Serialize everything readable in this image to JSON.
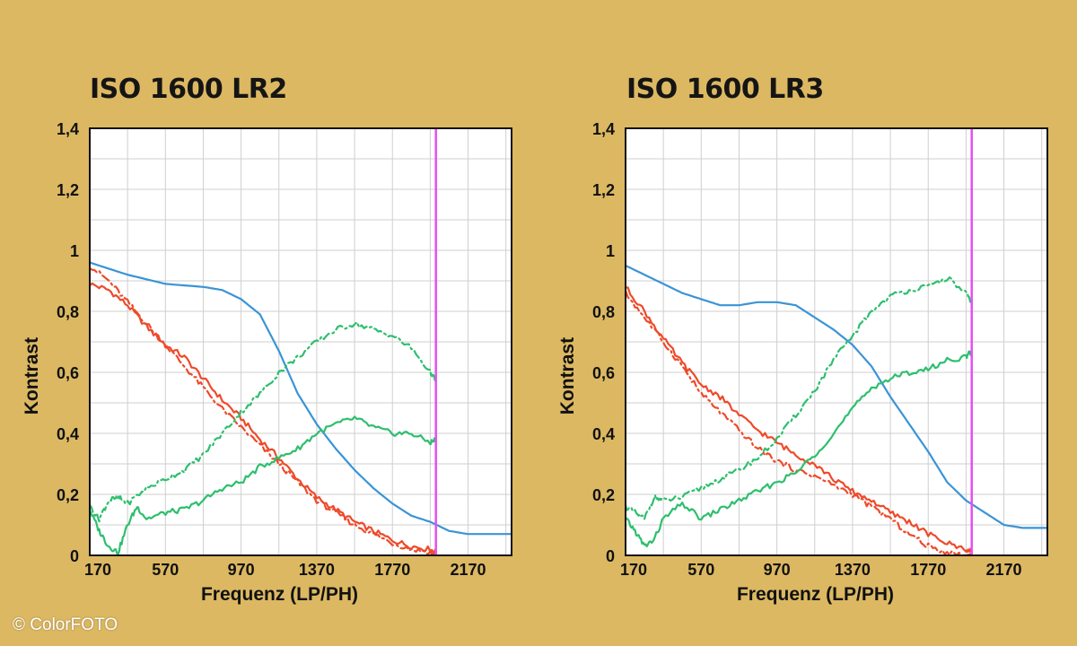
{
  "copyright": "© ColorFOTO",
  "colors": {
    "background": "#dcb862",
    "plot_bg": "#ffffff",
    "grid": "#cfcfcf",
    "frame": "#111111",
    "blue": "#3a94d6",
    "red": "#ee4a2a",
    "green": "#2dbf6e",
    "limit": "#e64ef2"
  },
  "chart_data": [
    {
      "type": "line",
      "title": "ISO 1600 LR2",
      "xlabel": "Frequenz (LP/PH)",
      "ylabel": "Kontrast",
      "xlim": [
        170,
        2400
      ],
      "ylim": [
        0,
        1.4
      ],
      "xticks": [
        170,
        570,
        970,
        1370,
        1770,
        2170
      ],
      "yticks": [
        0,
        0.2,
        0.4,
        0.6,
        0.8,
        1,
        1.2,
        1.4
      ],
      "ytick_labels": [
        "0",
        "0,2",
        "0,4",
        "0,6",
        "0,8",
        "1",
        "1,2",
        "1,4"
      ],
      "grid": true,
      "vline": {
        "x": 2000,
        "color": "#e64ef2"
      },
      "series": [
        {
          "color": "#3a94d6",
          "style": "solid",
          "x": [
            170,
            370,
            570,
            770,
            870,
            970,
            1070,
            1170,
            1270,
            1370,
            1470,
            1570,
            1670,
            1770,
            1870,
            1970,
            2070,
            2170,
            2270,
            2400
          ],
          "y": [
            0.96,
            0.92,
            0.89,
            0.88,
            0.87,
            0.84,
            0.79,
            0.67,
            0.53,
            0.43,
            0.35,
            0.28,
            0.22,
            0.17,
            0.13,
            0.11,
            0.08,
            0.07,
            0.07,
            0.07
          ]
        },
        {
          "color": "#ee4a2a",
          "style": "solid",
          "x": [
            170,
            270,
            370,
            470,
            570,
            670,
            770,
            870,
            970,
            1070,
            1170,
            1270,
            1370,
            1470,
            1570,
            1670,
            1770,
            1870,
            1970,
            2000
          ],
          "y": [
            0.89,
            0.87,
            0.82,
            0.75,
            0.69,
            0.65,
            0.58,
            0.51,
            0.45,
            0.38,
            0.32,
            0.25,
            0.19,
            0.15,
            0.11,
            0.08,
            0.05,
            0.03,
            0.02,
            0.01
          ]
        },
        {
          "color": "#ee4a2a",
          "style": "dashdot",
          "x": [
            170,
            270,
            370,
            470,
            570,
            670,
            770,
            870,
            970,
            1070,
            1170,
            1270,
            1370,
            1470,
            1570,
            1670,
            1770,
            1870,
            1970,
            2000
          ],
          "y": [
            0.95,
            0.9,
            0.83,
            0.76,
            0.69,
            0.62,
            0.55,
            0.48,
            0.42,
            0.36,
            0.3,
            0.24,
            0.18,
            0.14,
            0.1,
            0.07,
            0.04,
            0.02,
            0.01,
            0.0
          ]
        },
        {
          "color": "#2dbf6e",
          "style": "solid",
          "x": [
            170,
            220,
            270,
            320,
            370,
            420,
            470,
            570,
            670,
            770,
            870,
            970,
            1070,
            1170,
            1270,
            1370,
            1470,
            1570,
            1670,
            1770,
            1870,
            1970,
            2000
          ],
          "y": [
            0.15,
            0.08,
            0.03,
            0.01,
            0.1,
            0.16,
            0.12,
            0.14,
            0.15,
            0.18,
            0.22,
            0.24,
            0.29,
            0.32,
            0.35,
            0.4,
            0.43,
            0.45,
            0.42,
            0.4,
            0.4,
            0.37,
            0.38
          ]
        },
        {
          "color": "#2dbf6e",
          "style": "dashdot",
          "x": [
            170,
            220,
            270,
            320,
            370,
            470,
            570,
            670,
            770,
            870,
            970,
            1070,
            1170,
            1270,
            1370,
            1470,
            1570,
            1670,
            1770,
            1870,
            1970,
            2000
          ],
          "y": [
            0.16,
            0.12,
            0.18,
            0.19,
            0.17,
            0.22,
            0.25,
            0.28,
            0.33,
            0.4,
            0.47,
            0.53,
            0.6,
            0.65,
            0.7,
            0.74,
            0.76,
            0.74,
            0.72,
            0.68,
            0.6,
            0.57
          ]
        }
      ]
    },
    {
      "type": "line",
      "title": "ISO 1600 LR3",
      "xlabel": "Frequenz (LP/PH)",
      "ylabel": "Kontrast",
      "xlim": [
        170,
        2400
      ],
      "ylim": [
        0,
        1.4
      ],
      "xticks": [
        170,
        570,
        970,
        1370,
        1770,
        2170
      ],
      "yticks": [
        0,
        0.2,
        0.4,
        0.6,
        0.8,
        1,
        1.2,
        1.4
      ],
      "ytick_labels": [
        "0",
        "0,2",
        "0,4",
        "0,6",
        "0,8",
        "1",
        "1,2",
        "1,4"
      ],
      "grid": true,
      "vline": {
        "x": 2000,
        "color": "#e64ef2"
      },
      "series": [
        {
          "color": "#3a94d6",
          "style": "solid",
          "x": [
            170,
            270,
            370,
            470,
            570,
            670,
            770,
            870,
            970,
            1070,
            1170,
            1270,
            1370,
            1470,
            1570,
            1670,
            1770,
            1870,
            1970,
            2070,
            2170,
            2270,
            2400
          ],
          "y": [
            0.95,
            0.92,
            0.89,
            0.86,
            0.84,
            0.82,
            0.82,
            0.83,
            0.83,
            0.82,
            0.78,
            0.74,
            0.69,
            0.62,
            0.52,
            0.43,
            0.34,
            0.24,
            0.18,
            0.14,
            0.1,
            0.09,
            0.09
          ]
        },
        {
          "color": "#ee4a2a",
          "style": "solid",
          "x": [
            170,
            270,
            370,
            470,
            570,
            670,
            770,
            870,
            970,
            1070,
            1170,
            1270,
            1370,
            1470,
            1570,
            1670,
            1770,
            1870,
            1970,
            2000
          ],
          "y": [
            0.88,
            0.8,
            0.71,
            0.63,
            0.56,
            0.52,
            0.46,
            0.41,
            0.37,
            0.33,
            0.3,
            0.25,
            0.21,
            0.18,
            0.14,
            0.11,
            0.07,
            0.04,
            0.02,
            0.01
          ]
        },
        {
          "color": "#ee4a2a",
          "style": "dashdot",
          "x": [
            170,
            270,
            370,
            470,
            570,
            670,
            770,
            870,
            970,
            1070,
            1170,
            1270,
            1370,
            1470,
            1570,
            1670,
            1770,
            1870,
            1970,
            2000
          ],
          "y": [
            0.86,
            0.78,
            0.7,
            0.62,
            0.53,
            0.47,
            0.41,
            0.35,
            0.31,
            0.28,
            0.26,
            0.23,
            0.2,
            0.16,
            0.12,
            0.07,
            0.03,
            0.01,
            0.0,
            0.0
          ]
        },
        {
          "color": "#2dbf6e",
          "style": "solid",
          "x": [
            170,
            220,
            270,
            320,
            370,
            470,
            570,
            670,
            770,
            870,
            970,
            1070,
            1170,
            1270,
            1370,
            1470,
            1570,
            1670,
            1770,
            1870,
            1970,
            2000
          ],
          "y": [
            0.12,
            0.08,
            0.03,
            0.05,
            0.12,
            0.17,
            0.12,
            0.15,
            0.18,
            0.21,
            0.24,
            0.27,
            0.33,
            0.4,
            0.48,
            0.55,
            0.58,
            0.6,
            0.61,
            0.64,
            0.65,
            0.67
          ]
        },
        {
          "color": "#2dbf6e",
          "style": "dashdot",
          "x": [
            170,
            220,
            270,
            320,
            370,
            470,
            570,
            670,
            770,
            870,
            970,
            1070,
            1170,
            1270,
            1370,
            1470,
            1570,
            1670,
            1770,
            1870,
            1970,
            2000
          ],
          "y": [
            0.16,
            0.14,
            0.12,
            0.19,
            0.18,
            0.19,
            0.22,
            0.25,
            0.28,
            0.32,
            0.38,
            0.46,
            0.54,
            0.64,
            0.72,
            0.8,
            0.85,
            0.87,
            0.88,
            0.91,
            0.86,
            0.82
          ]
        }
      ]
    }
  ]
}
